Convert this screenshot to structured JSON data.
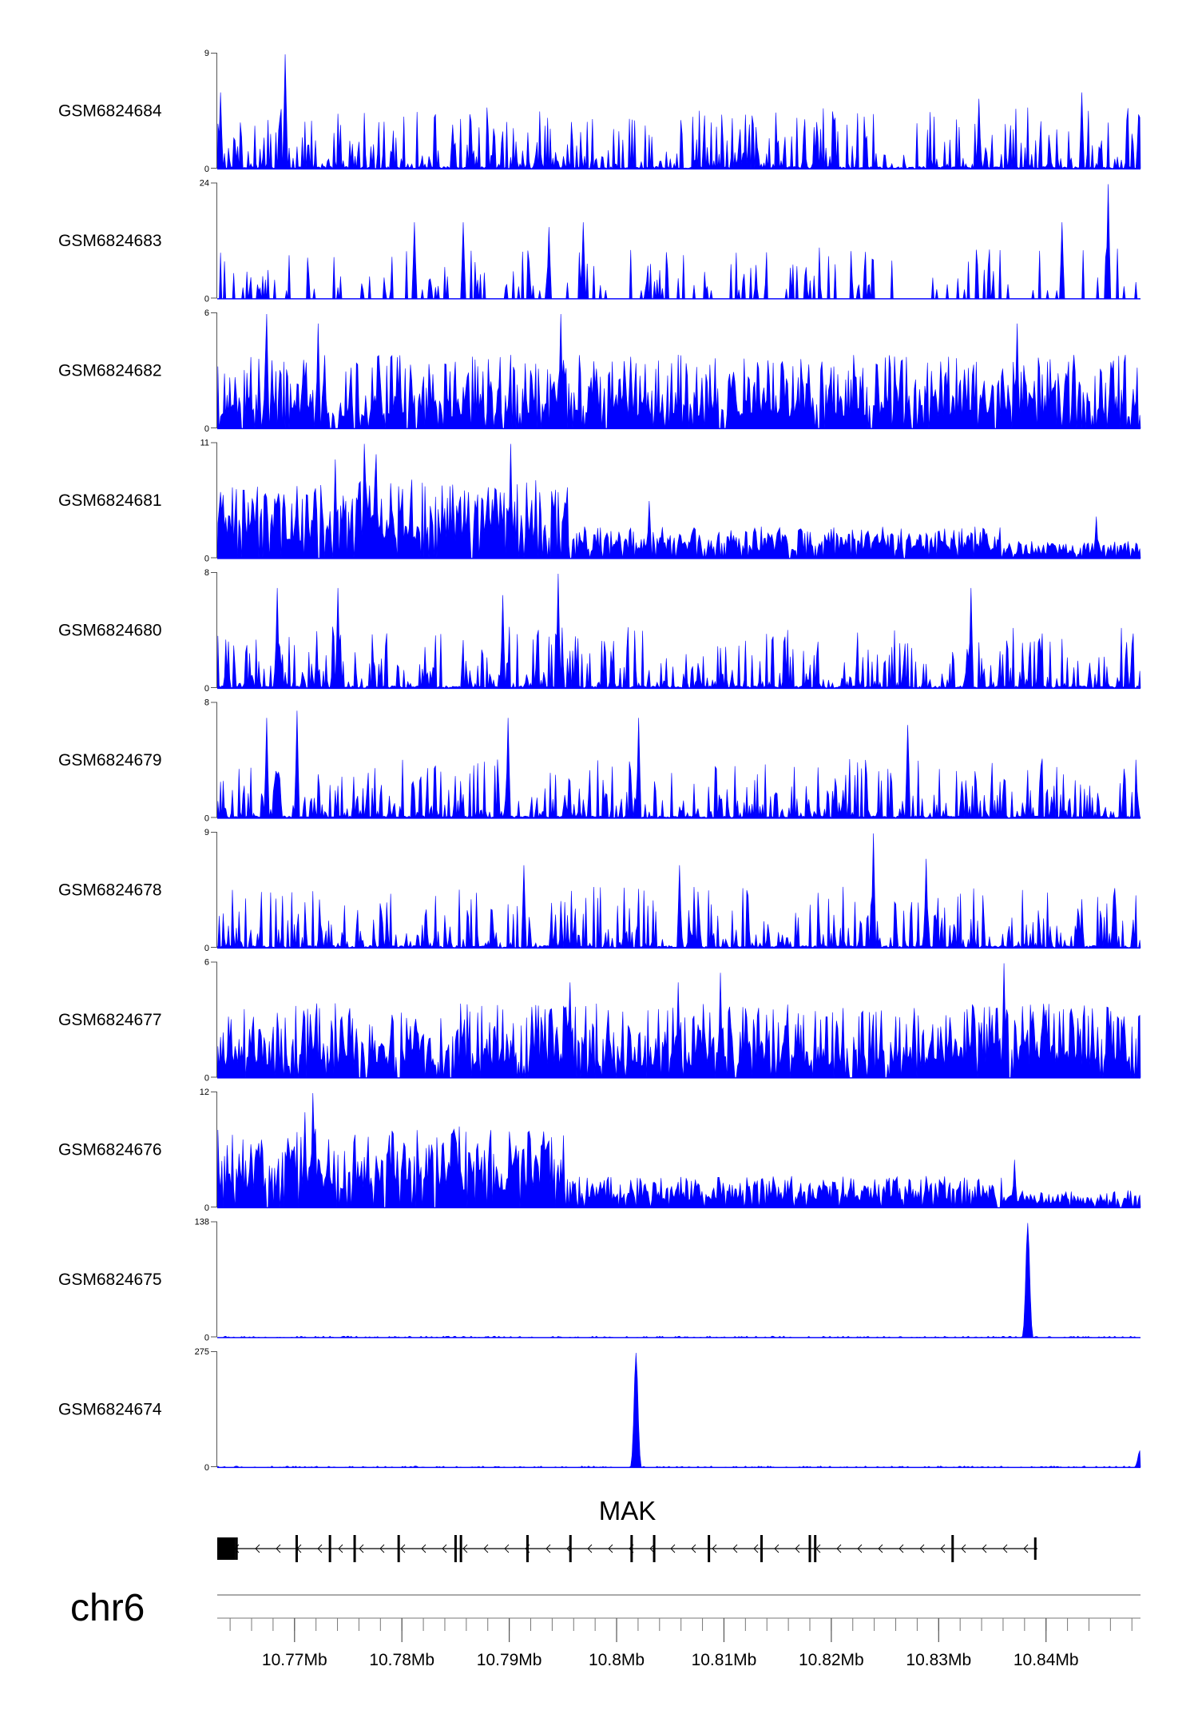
{
  "chart_data": {
    "type": "area",
    "title": "",
    "chromosome": "chr6",
    "x_unit": "Mb",
    "xlim": [
      10.7628,
      10.8488
    ],
    "x_ticks": [
      10.77,
      10.78,
      10.79,
      10.8,
      10.81,
      10.82,
      10.83,
      10.84
    ],
    "x_tick_labels": [
      "10.77Mb",
      "10.78Mb",
      "10.79Mb",
      "10.8Mb",
      "10.81Mb",
      "10.82Mb",
      "10.83Mb",
      "10.84Mb"
    ],
    "fill_color": "#0000ff",
    "tracks": [
      {
        "name": "GSM6824684",
        "ylim": [
          0,
          9
        ],
        "y_tick_labels": [
          "9",
          "0"
        ],
        "profile": "sparse_uniform",
        "peaks": [
          [
            10.7691,
            9
          ],
          [
            10.8434,
            6
          ],
          [
            10.8338,
            5.5
          ],
          [
            10.7631,
            6
          ]
        ]
      },
      {
        "name": "GSM6824683",
        "ylim": [
          0,
          24
        ],
        "y_tick_labels": [
          "24",
          "0"
        ],
        "profile": "very_sparse",
        "peaks": [
          [
            10.8458,
            24
          ],
          [
            10.8415,
            16
          ],
          [
            10.7857,
            16
          ],
          [
            10.7811,
            16
          ],
          [
            10.7937,
            15
          ],
          [
            10.7969,
            16
          ]
        ]
      },
      {
        "name": "GSM6824682",
        "ylim": [
          0,
          6
        ],
        "y_tick_labels": [
          "6",
          "0"
        ],
        "profile": "dense_uniform",
        "peaks": [
          [
            10.7948,
            6
          ],
          [
            10.7674,
            6
          ],
          [
            10.8374,
            5.5
          ],
          [
            10.7722,
            5.5
          ]
        ]
      },
      {
        "name": "GSM6824681",
        "ylim": [
          0,
          11
        ],
        "y_tick_labels": [
          "11",
          "0"
        ],
        "profile": "dense_decay",
        "peaks": [
          [
            10.7901,
            11
          ],
          [
            10.7764,
            11
          ],
          [
            10.7776,
            10
          ],
          [
            10.7738,
            9.5
          ],
          [
            10.803,
            5.5
          ],
          [
            10.8448,
            4
          ]
        ]
      },
      {
        "name": "GSM6824680",
        "ylim": [
          0,
          8
        ],
        "y_tick_labels": [
          "8",
          "0"
        ],
        "profile": "sparse_uniform",
        "peaks": [
          [
            10.7946,
            8
          ],
          [
            10.774,
            7
          ],
          [
            10.8331,
            7
          ],
          [
            10.7683,
            7
          ],
          [
            10.7894,
            6.5
          ]
        ]
      },
      {
        "name": "GSM6824679",
        "ylim": [
          0,
          8
        ],
        "y_tick_labels": [
          "8",
          "0"
        ],
        "profile": "sparse_uniform",
        "peaks": [
          [
            10.7702,
            7.5
          ],
          [
            10.8021,
            7
          ],
          [
            10.7899,
            7
          ],
          [
            10.7673,
            7
          ],
          [
            10.8271,
            6.5
          ]
        ]
      },
      {
        "name": "GSM6824678",
        "ylim": [
          0,
          9
        ],
        "y_tick_labels": [
          "9",
          "0"
        ],
        "profile": "sparse_uniform",
        "peaks": [
          [
            10.8239,
            9
          ],
          [
            10.8289,
            7
          ],
          [
            10.8059,
            6.5
          ],
          [
            10.7914,
            6.5
          ]
        ]
      },
      {
        "name": "GSM6824677",
        "ylim": [
          0,
          6
        ],
        "y_tick_labels": [
          "6",
          "0"
        ],
        "profile": "dense_uniform",
        "peaks": [
          [
            10.8361,
            6
          ],
          [
            10.8097,
            5.5
          ],
          [
            10.7956,
            5
          ],
          [
            10.8058,
            5
          ]
        ]
      },
      {
        "name": "GSM6824676",
        "ylim": [
          0,
          12
        ],
        "y_tick_labels": [
          "12",
          "0"
        ],
        "profile": "dense_decay",
        "peaks": [
          [
            10.7717,
            12
          ],
          [
            10.7709,
            10
          ],
          [
            10.7853,
            8.5
          ],
          [
            10.7918,
            8
          ],
          [
            10.785,
            7.5
          ],
          [
            10.8371,
            5
          ]
        ]
      },
      {
        "name": "GSM6824675",
        "ylim": [
          0,
          138
        ],
        "y_tick_labels": [
          "138",
          "0"
        ],
        "profile": "flat",
        "peaks": [
          [
            10.8384,
            138
          ]
        ]
      },
      {
        "name": "GSM6824674",
        "ylim": [
          0,
          275
        ],
        "y_tick_labels": [
          "275",
          "0"
        ],
        "profile": "flat",
        "peaks": [
          [
            10.8018,
            275
          ],
          [
            10.8488,
            40
          ]
        ]
      }
    ],
    "gene_track": {
      "gene": "MAK",
      "strand": "-",
      "start": 10.7628,
      "end": 10.8392,
      "exons": [
        [
          10.7628,
          10.7645
        ],
        10.7646,
        10.7702,
        10.7733,
        10.7756,
        10.7797,
        10.785,
        10.7855,
        10.7917,
        10.7957,
        10.8014,
        10.8035,
        10.8086,
        10.8135,
        10.818,
        10.8185,
        10.8313,
        10.839
      ]
    }
  }
}
